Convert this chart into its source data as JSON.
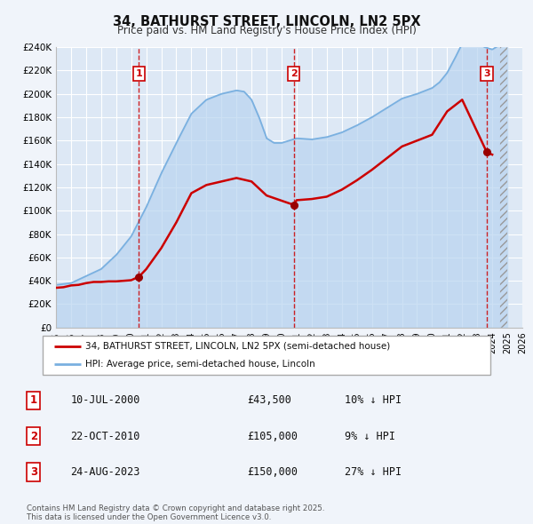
{
  "title": "34, BATHURST STREET, LINCOLN, LN2 5PX",
  "subtitle": "Price paid vs. HM Land Registry's House Price Index (HPI)",
  "legend_line1": "34, BATHURST STREET, LINCOLN, LN2 5PX (semi-detached house)",
  "legend_line2": "HPI: Average price, semi-detached house, Lincoln",
  "footer": "Contains HM Land Registry data © Crown copyright and database right 2025.\nThis data is licensed under the Open Government Licence v3.0.",
  "transactions": [
    {
      "num": 1,
      "date": "10-JUL-2000",
      "price": "£43,500",
      "hpi": "10% ↓ HPI",
      "year": 2000.52
    },
    {
      "num": 2,
      "date": "22-OCT-2010",
      "price": "£105,000",
      "hpi": "9% ↓ HPI",
      "year": 2010.8
    },
    {
      "num": 3,
      "date": "24-AUG-2023",
      "price": "£150,000",
      "hpi": "27% ↓ HPI",
      "year": 2023.64
    }
  ],
  "price_paid_color": "#cc0000",
  "hpi_line_color": "#7ab0e0",
  "hpi_fill_color": "#b8d4f0",
  "vline_color": "#cc0000",
  "background_color": "#f0f4fa",
  "plot_bg_color": "#dde8f5",
  "ylim": [
    0,
    240000
  ],
  "xlim": [
    1995,
    2026
  ],
  "ytick_values": [
    0,
    20000,
    40000,
    60000,
    80000,
    100000,
    120000,
    140000,
    160000,
    180000,
    200000,
    220000,
    240000
  ],
  "xtick_values": [
    1995,
    1996,
    1997,
    1998,
    1999,
    2000,
    2001,
    2002,
    2003,
    2004,
    2005,
    2006,
    2007,
    2008,
    2009,
    2010,
    2011,
    2012,
    2013,
    2014,
    2015,
    2016,
    2017,
    2018,
    2019,
    2020,
    2021,
    2022,
    2023,
    2024,
    2025,
    2026
  ],
  "price_paid_years": [
    1995.0,
    1995.5,
    1996.0,
    1996.5,
    1997.0,
    1997.5,
    1998.0,
    1998.5,
    1999.0,
    1999.5,
    2000.0,
    2000.52,
    2001.0,
    2002.0,
    2003.0,
    2004.0,
    2005.0,
    2006.0,
    2007.0,
    2008.0,
    2009.0,
    2010.8,
    2011.0,
    2012.0,
    2013.0,
    2014.0,
    2015.0,
    2016.0,
    2017.0,
    2018.0,
    2019.0,
    2020.0,
    2021.0,
    2022.0,
    2023.64,
    2024.0
  ],
  "price_paid_values": [
    34000,
    34500,
    36000,
    36500,
    38000,
    39000,
    39000,
    39500,
    39500,
    40000,
    40500,
    43500,
    50000,
    68000,
    90000,
    115000,
    122000,
    125000,
    128000,
    125000,
    113000,
    105000,
    109000,
    110000,
    112000,
    118000,
    126000,
    135000,
    145000,
    155000,
    160000,
    165000,
    185000,
    195000,
    150000,
    148000
  ],
  "future_start_year": 2024.5
}
